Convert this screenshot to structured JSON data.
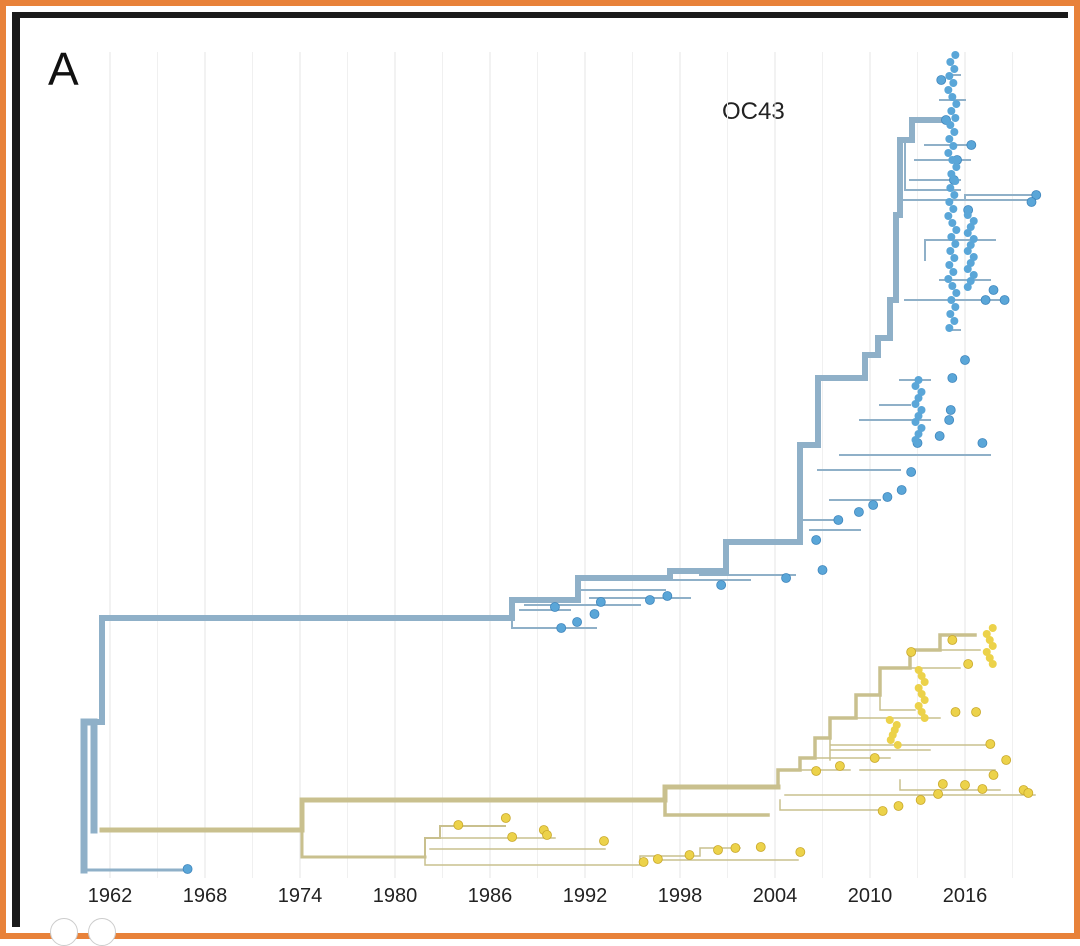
{
  "panel": {
    "letter": "A"
  },
  "chart_data": {
    "type": "scatter",
    "title": "OC43",
    "xlabel": "",
    "ylabel": "",
    "xlim": [
      1959,
      2021
    ],
    "x_ticks": [
      1962,
      1968,
      1974,
      1980,
      1986,
      1992,
      1998,
      2004,
      2010,
      2016
    ],
    "grid": true,
    "colors": {
      "clade_blue": "#5aa6d8",
      "clade_yellow": "#ecd24a",
      "branch_blue": "#8fb0c8",
      "branch_yellow": "#c9c08e",
      "grid": "#e4e4e4"
    },
    "series": [
      {
        "name": "blue clade tips",
        "color": "#5aa6d8",
        "x": [
          1966.9,
          1990.5,
          1991.5,
          1992.6,
          1990.1,
          1996.1,
          1997.2,
          1993.0,
          2000.6,
          2004.7,
          2007.0,
          2006.6,
          2008.0,
          2009.3,
          2010.2,
          2011.1,
          2012.0,
          2012.6,
          2013.0,
          2017.1,
          2014.4,
          2015.0,
          2015.1,
          2015.2,
          2016.0,
          2017.3,
          2017.8,
          2018.5,
          2020.5,
          2020.2,
          2015.3,
          2016.4,
          2015.5,
          2014.8,
          2014.5,
          2016.2
        ],
        "y": [
          869,
          628,
          622,
          614,
          607,
          600,
          596,
          602,
          585,
          578,
          570,
          540,
          520,
          512,
          505,
          497,
          490,
          472,
          443,
          443,
          436,
          420,
          410,
          378,
          360,
          300,
          290,
          300,
          195,
          202,
          180,
          145,
          160,
          120,
          80,
          210
        ]
      },
      {
        "name": "yellow clade tips",
        "color": "#ecd24a",
        "x": [
          1984.0,
          1987.0,
          1987.4,
          1989.4,
          1989.6,
          1993.2,
          1995.7,
          1996.6,
          1998.6,
          2000.4,
          2001.5,
          2003.1,
          2005.6,
          2006.6,
          2008.1,
          2010.3,
          2010.8,
          2011.8,
          2013.2,
          2014.3,
          2014.6,
          2016.0,
          2017.1,
          2017.8,
          2018.6,
          2017.6,
          2019.7,
          2020.0,
          2015.4,
          2016.7,
          2016.2,
          2015.2,
          2012.6
        ],
        "y": [
          825,
          818,
          837,
          830,
          835,
          841,
          862,
          859,
          855,
          850,
          848,
          847,
          852,
          771,
          766,
          758,
          811,
          806,
          800,
          794,
          784,
          785,
          789,
          775,
          760,
          744,
          790,
          793,
          712,
          712,
          664,
          640,
          652
        ]
      }
    ],
    "annotations": [
      "OC43"
    ]
  }
}
